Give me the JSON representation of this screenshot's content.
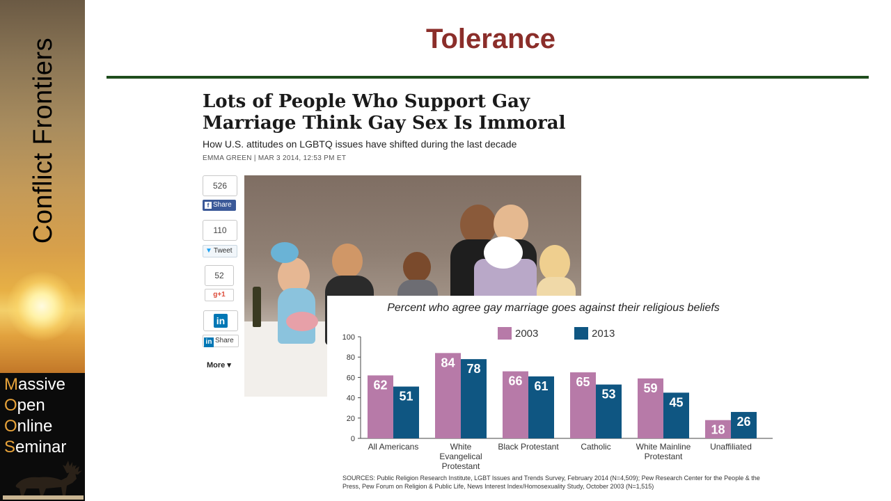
{
  "sidebar": {
    "brand": "Conflict Frontiers",
    "mooc_lines": [
      {
        "cap": "M",
        "rest": "assive"
      },
      {
        "cap": "O",
        "rest": "pen"
      },
      {
        "cap": "O",
        "rest": "nline"
      },
      {
        "cap": "S",
        "rest": "eminar"
      }
    ]
  },
  "slide": {
    "title": "Tolerance"
  },
  "article": {
    "headline_line1": "Lots of People Who Support Gay",
    "headline_line2": "Marriage Think Gay Sex Is Immoral",
    "subhead": "How U.S. attitudes on LGBTQ issues have shifted during the last decade",
    "byline": "EMMA GREEN | MAR 3 2014, 12:53 PM ET"
  },
  "social": {
    "facebook_count": "526",
    "facebook_label": "Share",
    "twitter_count": "110",
    "twitter_label": "Tweet",
    "gplus_count": "52",
    "gplus_label": "g+1",
    "linkedin_label": "Share",
    "more_label": "More ▾"
  },
  "colors": {
    "series_2003": "#b77aa8",
    "series_2013": "#0f5682",
    "title": "#8b2e2a",
    "rule": "#1f4d1d"
  },
  "chart_data": {
    "type": "bar",
    "title": "Percent who agree gay marriage goes against their religious beliefs",
    "categories": [
      [
        "All Americans"
      ],
      [
        "White",
        "Evangelical",
        "Protestant"
      ],
      [
        "Black Protestant"
      ],
      [
        "Catholic"
      ],
      [
        "White Mainline",
        "Protestant"
      ],
      [
        "Unaffiliated"
      ]
    ],
    "series": [
      {
        "name": "2003",
        "values": [
          62,
          84,
          66,
          65,
          59,
          18
        ]
      },
      {
        "name": "2013",
        "values": [
          51,
          78,
          61,
          53,
          45,
          26
        ]
      }
    ],
    "ylim": [
      0,
      100
    ],
    "yticks": [
      0,
      20,
      40,
      60,
      80,
      100
    ],
    "legend": "top-center",
    "grid": false,
    "sources": "SOURCES: Public Religion Research Institute, LGBT Issues and Trends Survey, February 2014 (N=4,509); Pew Research Center for the People & the Press, Pew Forum on Religion & Public Life, News Interest Index/Homosexuality Study, October 2003 (N=1,515)"
  }
}
